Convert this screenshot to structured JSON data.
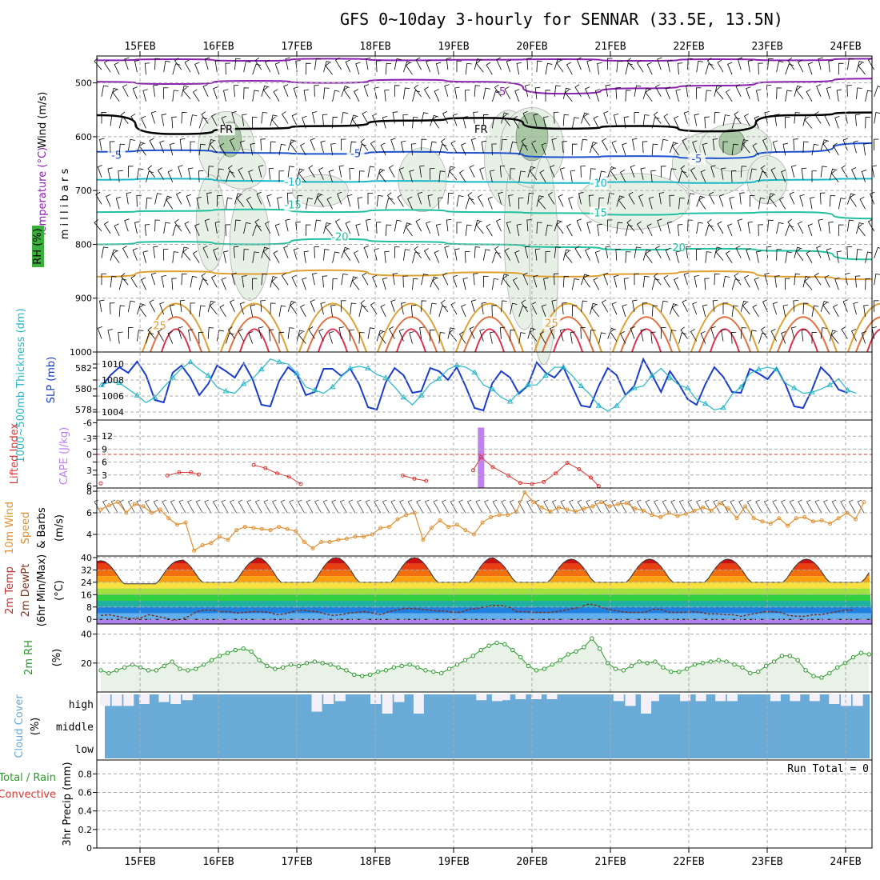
{
  "title": "GFS 0~10day 3-hourly for SENNAR (33.5E, 13.5N)",
  "dates": [
    "15FEB",
    "16FEB",
    "17FEB",
    "18FEB",
    "19FEB",
    "20FEB",
    "21FEB",
    "22FEB",
    "23FEB",
    "24FEB"
  ],
  "colors": {
    "frame": "#000000",
    "grid": "#aaaaaa",
    "rh_fill": "#e6f0e4",
    "rh_dark": "#a8c8a4",
    "slp": "#1a3ccc",
    "thickness": "#22b8c8",
    "cape": "#c080f0",
    "lifted": "#dd3333",
    "wind10": "#e09030",
    "temp": "#803020",
    "dewpt": "#803020",
    "rh2m": "#2a9a2a",
    "cloud": "#6aaad6",
    "isotherm_purple": "#8a20b0",
    "isotherm_blue": "#1e50d0",
    "isotherm_cyan": "#18b8c8",
    "isotherm_teal": "#20c0a0",
    "isotherm_orange": "#e0a030",
    "isotherm_red": "#e03050"
  },
  "chart_data": [
    {
      "type": "contour",
      "name": "upper-air",
      "ylabel": "m i l l i b a r s",
      "side_labels": {
        "wind": "Wind (m/s)",
        "temperature": "Temperature (°C)",
        "rh": "RH (%)"
      },
      "y_ticks": [
        500,
        600,
        700,
        800,
        900,
        1000
      ],
      "ylim": [
        1000,
        450
      ],
      "isotherm_labels": [
        {
          "value": "-5",
          "day": 4.6,
          "p": 520,
          "color": "isotherm_purple"
        },
        {
          "value": "FR",
          "day": 1.1,
          "p": 590,
          "color": "frame"
        },
        {
          "value": "FR",
          "day": 4.35,
          "p": 590,
          "color": "frame"
        },
        {
          "value": "-5",
          "day": -0.3,
          "p": 638,
          "color": "isotherm_blue"
        },
        {
          "value": "-5",
          "day": 2.75,
          "p": 635,
          "color": "isotherm_blue"
        },
        {
          "value": "-5",
          "day": 7.1,
          "p": 645,
          "color": "isotherm_blue"
        },
        {
          "value": "-10",
          "day": 1.95,
          "p": 688,
          "color": "isotherm_cyan"
        },
        {
          "value": "-10",
          "day": 5.85,
          "p": 690,
          "color": "isotherm_cyan"
        },
        {
          "value": "-15",
          "day": 1.95,
          "p": 730,
          "color": "isotherm_teal"
        },
        {
          "value": "-15",
          "day": 5.85,
          "p": 745,
          "color": "isotherm_teal"
        },
        {
          "value": "-20",
          "day": 2.55,
          "p": 790,
          "color": "isotherm_teal"
        },
        {
          "value": "-20",
          "day": 6.85,
          "p": 810,
          "color": "isotherm_teal"
        },
        {
          "value": "25",
          "day": 0.25,
          "p": 955,
          "color": "isotherm_orange"
        },
        {
          "value": "25",
          "day": 5.25,
          "p": 950,
          "color": "isotherm_orange"
        }
      ],
      "isotherms": [
        {
          "label": "-5 upper",
          "color": "isotherm_purple",
          "p": [
            458,
            456,
            459,
            455,
            458,
            457,
            456,
            459,
            456,
            458,
            455
          ]
        },
        {
          "label": "-5",
          "color": "isotherm_purple",
          "p": [
            498,
            502,
            496,
            500,
            494,
            498,
            520,
            510,
            505,
            498,
            492
          ]
        },
        {
          "label": "FR",
          "color": "frame",
          "p": [
            560,
            595,
            585,
            580,
            570,
            565,
            585,
            580,
            590,
            560,
            555
          ]
        },
        {
          "label": "-5",
          "color": "isotherm_blue",
          "p": [
            628,
            625,
            630,
            632,
            628,
            630,
            638,
            636,
            640,
            628,
            612
          ]
        },
        {
          "label": "-10",
          "color": "isotherm_cyan",
          "p": [
            680,
            678,
            682,
            684,
            682,
            684,
            686,
            684,
            686,
            680,
            678
          ]
        },
        {
          "label": "-15",
          "color": "isotherm_teal",
          "p": [
            740,
            738,
            735,
            740,
            736,
            740,
            742,
            745,
            742,
            740,
            752
          ]
        },
        {
          "label": "-20",
          "color": "isotherm_teal",
          "p": [
            800,
            795,
            800,
            790,
            795,
            800,
            805,
            810,
            808,
            812,
            828
          ]
        },
        {
          "label": "25",
          "color": "isotherm_orange",
          "p": [
            860,
            850,
            855,
            848,
            858,
            852,
            860,
            855,
            850,
            860,
            865
          ]
        }
      ]
    },
    {
      "type": "line",
      "name": "slp-thickness",
      "ylabel_left": "1000~500mb Thickness (dm)",
      "ylabel_right": "SLP (mb)",
      "left_ticks": [
        578,
        580,
        582
      ],
      "right_ticks": [
        1004,
        1006,
        1008,
        1010
      ],
      "ylim": [
        1003,
        1011.5
      ],
      "series": [
        {
          "name": "SLP (mb)",
          "color": "slp",
          "values": [
            1007.2,
            1008.6,
            1009.6,
            1008.9,
            1010.3,
            1008.6,
            1005.5,
            1005.2,
            1008.9,
            1009.8,
            1008.3,
            1006.1,
            1007.5,
            1009.8,
            1009.1,
            1008.3,
            1010.1,
            1008.1,
            1004.9,
            1004.7,
            1007.9,
            1009.6,
            1008.7,
            1006.1,
            1006.5,
            1009.4,
            1009.4,
            1008.5,
            1009.4,
            1007.5,
            1004.6,
            1004.3,
            1007.7,
            1009.5,
            1008.6,
            1006.4,
            1006.6,
            1009.5,
            1009.1,
            1008.0,
            1009.6,
            1007.2,
            1004.5,
            1004.2,
            1007.6,
            1009.1,
            1008.3,
            1006.3,
            1007.3,
            1010.2,
            1008.9,
            1008.3,
            1009.6,
            1007.2,
            1004.8,
            1004.6,
            1007.3,
            1009.5,
            1008.6,
            1006.1,
            1007.3,
            1010.6,
            1008.6,
            1006.5,
            1009.1,
            1007.5,
            1005.6,
            1004.9,
            1007.5,
            1009.6,
            1008.4,
            1006.5,
            1006.4,
            1009.4,
            1008.8,
            1008.1,
            1009.5,
            1007.5,
            1004.7,
            1004.5,
            1006.8,
            1009.6,
            1008.5,
            1006.8,
            1006.4
          ]
        },
        {
          "name": "Thickness (dm)",
          "color": "thickness",
          "values": [
            580.6,
            580.9,
            580.8,
            580.2,
            579.6,
            578.9,
            579.4,
            580.4,
            581.3,
            582.2,
            582.8,
            582.1,
            581.5,
            580.4,
            580.0,
            579.8,
            580.7,
            581.2,
            582.1,
            583.1,
            582.8,
            582.6,
            581.7,
            580.4,
            580.1,
            579.8,
            580.4,
            581.4,
            582.2,
            582.4,
            582.2,
            581.6,
            581.3,
            580.4,
            579.4,
            578.7,
            579.6,
            580.7,
            581.2,
            582.1,
            582.5,
            582.3,
            581.8,
            580.6,
            580.2,
            579.4,
            579.0,
            579.9,
            580.6,
            580.6,
            581.5,
            582.3,
            582.3,
            581.5,
            580.5,
            579.7,
            578.6,
            578.1,
            578.6,
            579.6,
            580.3,
            580.5,
            581.5,
            582.2,
            581.3,
            580.6,
            580.3,
            579.2,
            578.8,
            578.2,
            578.4,
            579.7,
            580.4,
            581.7,
            582.1,
            582.3,
            582.1,
            580.8,
            580.3,
            579.8,
            579.9,
            580.2,
            580.6,
            581.2,
            580.1,
            579.8
          ]
        }
      ]
    },
    {
      "type": "bar+line",
      "name": "cape-lifted",
      "ylabel_left": "Lifted Index",
      "ylabel_right": "CAPE (J/kg)",
      "left_ticks": [
        "-6",
        "-3",
        "0",
        "3",
        "6"
      ],
      "right_ticks": [
        3,
        6,
        9,
        12
      ],
      "cape_values": [
        {
          "day": 4.35,
          "value": 14
        }
      ],
      "lifted_index": [
        {
          "day": -0.5,
          "value": 5.5
        },
        {
          "day": 0.35,
          "value": 4.0
        },
        {
          "day": 0.5,
          "value": 3.4
        },
        {
          "day": 0.65,
          "value": 3.4
        },
        {
          "day": 0.75,
          "value": 3.8
        },
        {
          "day": 1.45,
          "value": 2.0
        },
        {
          "day": 1.6,
          "value": 2.6
        },
        {
          "day": 1.75,
          "value": 3.6
        },
        {
          "day": 1.9,
          "value": 4.2
        },
        {
          "day": 2.05,
          "value": 5.6
        },
        {
          "day": 3.35,
          "value": 4.0
        },
        {
          "day": 3.5,
          "value": 4.6
        },
        {
          "day": 3.65,
          "value": 5.0
        },
        {
          "day": 4.25,
          "value": 3.0
        },
        {
          "day": 4.35,
          "value": 0.5
        },
        {
          "day": 4.5,
          "value": 2.4
        },
        {
          "day": 4.7,
          "value": 4.0
        },
        {
          "day": 4.85,
          "value": 5.4
        },
        {
          "day": 5.0,
          "value": 5.6
        },
        {
          "day": 5.15,
          "value": 5.2
        },
        {
          "day": 5.3,
          "value": 3.6
        },
        {
          "day": 5.45,
          "value": 1.6
        },
        {
          "day": 5.6,
          "value": 2.8
        },
        {
          "day": 5.75,
          "value": 4.4
        },
        {
          "day": 5.85,
          "value": 6.0
        }
      ]
    },
    {
      "type": "line",
      "name": "wind10m",
      "ylabel": "10m Wind Speed & Barbs (m/s)",
      "y_ticks": [
        4,
        6,
        8
      ],
      "ylim": [
        2,
        8.3
      ],
      "series": [
        {
          "name": "10m Wind Speed",
          "color": "wind10",
          "values": [
            6.3,
            6.7,
            7.0,
            6.0,
            6.8,
            6.6,
            6.0,
            6.3,
            5.5,
            4.9,
            5.1,
            2.5,
            3.0,
            3.2,
            3.8,
            3.5,
            4.4,
            4.7,
            4.6,
            4.5,
            4.4,
            4.7,
            4.5,
            4.3,
            3.3,
            2.7,
            3.3,
            3.3,
            3.5,
            3.6,
            3.8,
            3.8,
            4.0,
            4.6,
            4.7,
            5.4,
            5.8,
            6.0,
            3.5,
            4.6,
            5.3,
            4.7,
            4.9,
            4.4,
            4.0,
            5.1,
            5.6,
            5.8,
            5.8,
            6.1,
            7.9,
            7.0,
            6.5,
            6.1,
            6.5,
            6.3,
            6.1,
            6.4,
            6.6,
            7.0,
            6.6,
            6.8,
            6.9,
            6.4,
            6.2,
            5.8,
            5.6,
            6.0,
            5.7,
            5.9,
            6.2,
            6.5,
            6.2,
            6.9,
            6.4,
            5.5,
            6.6,
            5.5,
            5.2,
            5.0,
            5.5,
            4.8,
            5.5,
            5.6,
            5.2,
            5.3,
            5.0,
            5.5,
            6.0,
            5.4,
            7.0
          ]
        }
      ]
    },
    {
      "type": "area",
      "name": "temp2m",
      "ylabel": "2m Temp 2m DewPt (6hr Min/Max) (°C)",
      "y_ticks": [
        0,
        8,
        16,
        24,
        32,
        40
      ],
      "ylim": [
        -3,
        41
      ],
      "temp_max_by_day": [
        38,
        39,
        40,
        40,
        40,
        39,
        39,
        39,
        39,
        39
      ],
      "temp_min_by_day": [
        23,
        24,
        24,
        24,
        24,
        24,
        24,
        24,
        24,
        24
      ],
      "dewpt_values": [
        2.5,
        3,
        2,
        1,
        0.5,
        1,
        3,
        2,
        1,
        -0.5,
        0,
        2,
        5,
        6,
        6,
        5,
        5,
        4,
        4.5,
        5,
        5,
        4.5,
        3,
        3.5,
        5,
        6,
        5.5,
        5,
        3.5,
        2.5,
        3,
        4,
        4.5,
        5,
        4,
        3,
        5,
        6,
        7,
        7,
        6.5,
        6,
        5.5,
        5.5,
        4.5,
        4.5,
        6.5,
        7,
        8,
        9,
        9,
        8,
        5,
        5,
        4.5,
        4.5,
        4.5,
        5,
        6,
        7,
        8,
        10,
        9,
        7,
        6,
        5,
        4.5,
        4.5,
        4.5,
        6.5,
        6.5,
        4.5,
        4.5,
        4.5,
        5,
        4.5,
        3.5,
        3.5,
        3,
        3,
        2,
        3,
        4,
        5,
        5,
        4.5,
        2.5,
        2,
        2,
        3,
        3,
        4,
        5,
        6,
        6
      ]
    },
    {
      "type": "area",
      "name": "rh2m",
      "ylabel": "2m RH (%)",
      "y_ticks": [
        20,
        40
      ],
      "ylim": [
        0,
        47
      ],
      "series": [
        {
          "name": "2m RH",
          "color": "rh2m",
          "values": [
            15,
            13,
            15,
            17,
            19,
            17,
            15,
            15,
            18,
            21,
            16,
            15,
            16,
            19,
            22,
            25,
            27,
            29,
            30,
            28,
            22,
            18,
            16,
            17,
            19,
            18,
            20,
            21,
            20,
            19,
            17,
            15,
            12,
            11,
            12,
            14,
            15,
            17,
            18,
            19,
            17,
            15,
            14,
            13,
            16,
            19,
            22,
            25,
            29,
            32,
            34,
            33,
            29,
            24,
            18,
            15,
            16,
            19,
            22,
            26,
            28,
            31,
            37,
            30,
            20,
            16,
            15,
            18,
            21,
            20,
            21,
            17,
            14,
            14,
            16,
            19,
            20,
            21,
            22,
            21,
            19,
            17,
            13,
            14,
            18,
            21,
            25,
            25,
            22,
            15,
            11,
            10,
            13,
            17,
            20,
            24,
            27,
            26
          ]
        }
      ]
    },
    {
      "type": "bar",
      "name": "cloud-cover",
      "ylabel": "Cloud Cover (%)",
      "levels": [
        "high",
        "middle",
        "low"
      ],
      "high_gaps": [
        {
          "day": -0.45,
          "depth": 0.6
        },
        {
          "day": -0.3,
          "depth": 0.6
        },
        {
          "day": -0.15,
          "depth": 0.6
        },
        {
          "day": 0.05,
          "depth": 0.5
        },
        {
          "day": 0.3,
          "depth": 0.4
        },
        {
          "day": 0.45,
          "depth": 0.5
        },
        {
          "day": 0.6,
          "depth": 0.3
        },
        {
          "day": 2.25,
          "depth": 0.9
        },
        {
          "day": 2.4,
          "depth": 0.5
        },
        {
          "day": 2.55,
          "depth": 0.35
        },
        {
          "day": 3.0,
          "depth": 0.5
        },
        {
          "day": 3.15,
          "depth": 1.0
        },
        {
          "day": 3.3,
          "depth": 0.4
        },
        {
          "day": 3.55,
          "depth": 1.0
        },
        {
          "day": 4.35,
          "depth": 0.3
        },
        {
          "day": 4.55,
          "depth": 0.35
        },
        {
          "day": 4.65,
          "depth": 0.3
        },
        {
          "day": 4.85,
          "depth": 0.25
        },
        {
          "day": 5.05,
          "depth": 0.25
        },
        {
          "day": 5.25,
          "depth": 0.25
        },
        {
          "day": 6.1,
          "depth": 0.35
        },
        {
          "day": 6.25,
          "depth": 0.6
        },
        {
          "day": 6.45,
          "depth": 1.0
        },
        {
          "day": 6.55,
          "depth": 0.35
        },
        {
          "day": 6.95,
          "depth": 0.35
        },
        {
          "day": 7.15,
          "depth": 0.35
        },
        {
          "day": 7.4,
          "depth": 0.35
        },
        {
          "day": 7.55,
          "depth": 0.35
        },
        {
          "day": 8.1,
          "depth": 0.35
        },
        {
          "day": 8.35,
          "depth": 0.35
        },
        {
          "day": 8.6,
          "depth": 0.35
        },
        {
          "day": 8.85,
          "depth": 0.5
        },
        {
          "day": 9.0,
          "depth": 0.6
        },
        {
          "day": 9.15,
          "depth": 0.6
        }
      ]
    },
    {
      "type": "bar",
      "name": "precip",
      "ylabel": "3hr Precip (mm)",
      "side_label_1": "Total / Rain",
      "side_label_2": "Convective",
      "y_ticks": [
        "0",
        "0.2",
        "0.4",
        "0.6",
        "0.8"
      ],
      "ylim": [
        0,
        0.95
      ],
      "run_total": "Run Total = 0",
      "values": []
    }
  ]
}
